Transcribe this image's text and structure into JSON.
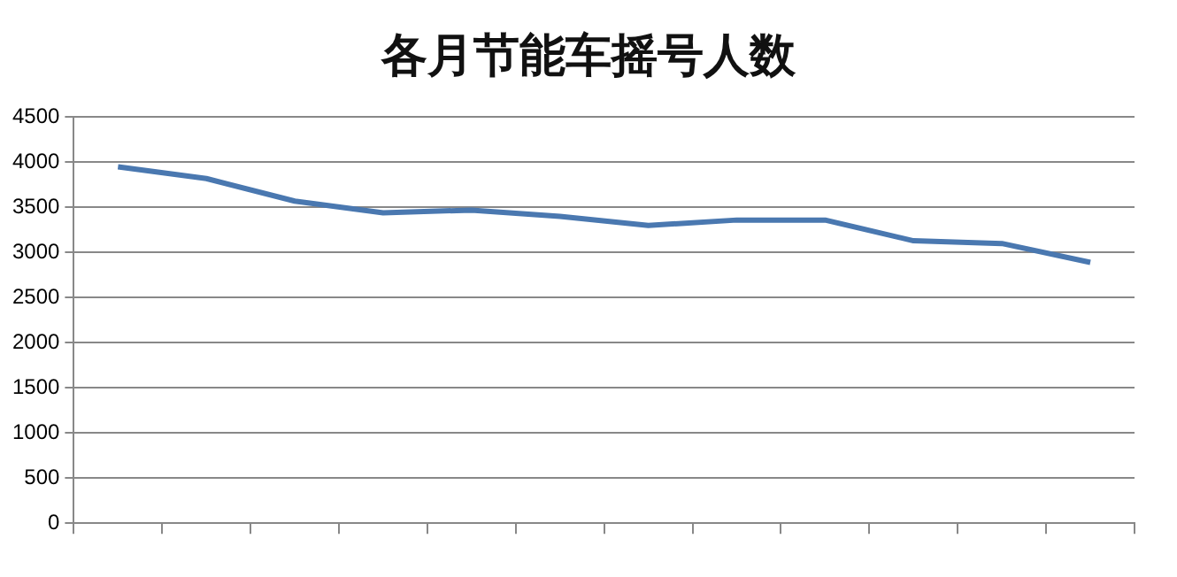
{
  "chart_data": {
    "type": "line",
    "title": "各月节能车摇号人数",
    "categories": [
      null,
      null,
      null,
      null,
      null,
      null,
      null,
      null,
      null,
      null,
      null,
      null
    ],
    "series": [
      {
        "color": "#4a78b0",
        "values": [
          3950,
          3820,
          3570,
          3440,
          3470,
          3400,
          3300,
          3360,
          3360,
          3130,
          3100,
          2890
        ]
      }
    ],
    "ylim": [
      0,
      4500
    ],
    "yticks": [
      0,
      500,
      1000,
      1500,
      2000,
      2500,
      3000,
      3500,
      4000,
      4500
    ],
    "grid": "y",
    "legend": false,
    "marker": "none"
  }
}
